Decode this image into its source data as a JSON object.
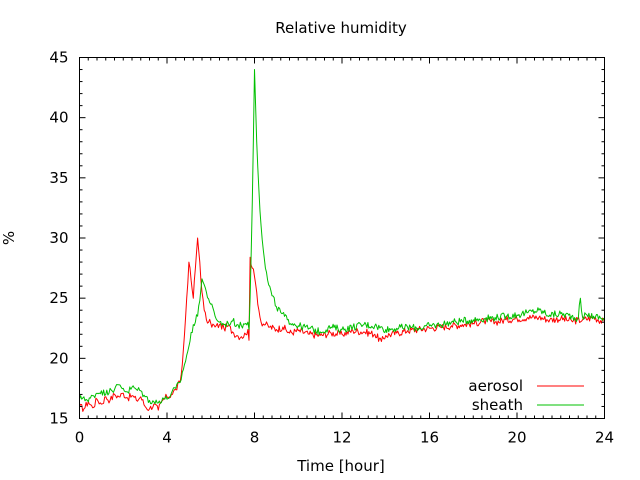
{
  "chart_data": {
    "type": "line",
    "title": "Relative humidity",
    "xlabel": "Time [hour]",
    "ylabel": "%",
    "xlim": [
      0,
      24
    ],
    "ylim": [
      15,
      45
    ],
    "xticks": [
      0,
      4,
      8,
      12,
      16,
      20,
      24
    ],
    "yticks": [
      15,
      20,
      25,
      30,
      35,
      40,
      45
    ],
    "grid": false,
    "legend_position": "bottom-right",
    "series": [
      {
        "name": "aerosol",
        "color": "#ff0000",
        "x": [
          0,
          0.2,
          0.4,
          0.6,
          0.8,
          1.0,
          1.2,
          1.4,
          1.6,
          1.8,
          2.0,
          2.2,
          2.4,
          2.6,
          2.8,
          3.0,
          3.2,
          3.4,
          3.6,
          3.8,
          4.0,
          4.2,
          4.4,
          4.6,
          4.7,
          4.8,
          4.9,
          5.0,
          5.1,
          5.2,
          5.3,
          5.4,
          5.5,
          5.6,
          5.7,
          5.8,
          5.9,
          6.0,
          6.2,
          6.4,
          6.6,
          6.8,
          7.0,
          7.2,
          7.4,
          7.6,
          7.7,
          7.75,
          7.8,
          7.9,
          8.0,
          8.1,
          8.2,
          8.3,
          8.5,
          8.7,
          9.0,
          9.3,
          9.6,
          10.0,
          10.5,
          11.0,
          11.5,
          12.0,
          12.5,
          13.0,
          13.5,
          13.8,
          14.0,
          14.5,
          15.0,
          15.5,
          16.0,
          16.5,
          17.0,
          17.5,
          18.0,
          18.5,
          19.0,
          19.5,
          20.0,
          20.5,
          21.0,
          21.5,
          22.0,
          22.5,
          23.0,
          23.5,
          24.0
        ],
        "y": [
          16.0,
          15.8,
          16.4,
          15.9,
          16.6,
          16.2,
          16.8,
          16.5,
          17.0,
          16.8,
          17.1,
          16.7,
          16.9,
          16.5,
          16.8,
          16.0,
          15.8,
          16.2,
          15.7,
          16.5,
          16.8,
          17.0,
          17.4,
          18.0,
          19.5,
          22.0,
          25.0,
          28.0,
          26.5,
          25.0,
          27.5,
          30.0,
          28.0,
          25.5,
          24.0,
          23.2,
          23.0,
          22.9,
          22.6,
          22.8,
          22.5,
          22.7,
          22.2,
          21.9,
          21.8,
          22.0,
          22.4,
          21.5,
          28.4,
          27.5,
          26.8,
          25.5,
          24.0,
          23.0,
          22.8,
          22.6,
          22.4,
          22.6,
          22.1,
          22.3,
          22.0,
          21.9,
          22.1,
          22.0,
          22.3,
          22.2,
          22.0,
          21.4,
          21.9,
          22.1,
          22.3,
          22.4,
          22.5,
          22.6,
          22.7,
          22.8,
          22.9,
          23.1,
          23.0,
          23.2,
          23.3,
          23.4,
          23.4,
          23.2,
          23.3,
          23.1,
          23.2,
          23.4,
          23.0
        ]
      },
      {
        "name": "sheath",
        "color": "#00c000",
        "x": [
          0,
          0.2,
          0.4,
          0.6,
          0.8,
          1.0,
          1.2,
          1.4,
          1.6,
          1.8,
          2.0,
          2.2,
          2.4,
          2.6,
          2.8,
          3.0,
          3.2,
          3.4,
          3.6,
          3.8,
          4.0,
          4.2,
          4.4,
          4.6,
          4.8,
          5.0,
          5.2,
          5.4,
          5.6,
          5.8,
          6.0,
          6.2,
          6.4,
          6.6,
          6.8,
          7.0,
          7.2,
          7.4,
          7.6,
          7.7,
          7.75,
          7.8,
          7.9,
          8.0,
          8.05,
          8.1,
          8.2,
          8.3,
          8.4,
          8.5,
          8.6,
          8.8,
          9.0,
          9.2,
          9.5,
          10.0,
          10.5,
          11.0,
          11.5,
          12.0,
          12.5,
          13.0,
          13.5,
          14.0,
          14.5,
          15.0,
          15.5,
          16.0,
          16.5,
          17.0,
          17.5,
          18.0,
          18.5,
          19.0,
          19.5,
          20.0,
          20.5,
          21.0,
          21.5,
          22.0,
          22.5,
          22.8,
          22.9,
          23.0,
          23.2,
          23.5,
          24.0
        ],
        "y": [
          16.6,
          16.8,
          16.4,
          16.9,
          17.1,
          17.3,
          17.0,
          17.5,
          17.4,
          17.8,
          17.5,
          17.2,
          17.6,
          17.4,
          17.3,
          16.8,
          16.5,
          16.4,
          16.3,
          16.7,
          16.6,
          17.1,
          17.5,
          18.0,
          19.5,
          21.0,
          22.8,
          23.5,
          26.6,
          25.5,
          24.5,
          23.5,
          23.0,
          22.8,
          22.9,
          23.1,
          22.8,
          22.7,
          22.9,
          23.0,
          22.4,
          25.0,
          33.0,
          44.0,
          41.0,
          38.0,
          34.0,
          31.0,
          29.0,
          27.5,
          26.5,
          25.2,
          24.3,
          23.8,
          23.2,
          22.7,
          22.5,
          22.2,
          22.6,
          22.4,
          22.6,
          22.8,
          22.7,
          22.4,
          22.5,
          22.6,
          22.5,
          22.7,
          22.8,
          23.0,
          23.1,
          23.2,
          23.3,
          23.4,
          23.5,
          23.6,
          23.8,
          24.0,
          23.6,
          23.7,
          23.5,
          23.3,
          25.0,
          23.4,
          23.6,
          23.5,
          23.3
        ]
      }
    ]
  }
}
